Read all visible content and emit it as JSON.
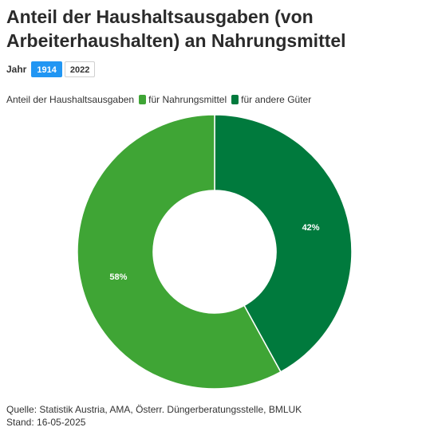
{
  "title": "Anteil der Haushaltsausgaben (von Arbeiterhaushalten) an Nahrungsmittel",
  "controls": {
    "label": "Jahr",
    "years": [
      {
        "label": "1914",
        "active": true
      },
      {
        "label": "2022",
        "active": false
      }
    ]
  },
  "legend": {
    "title": "Anteil der Haushaltsausgaben"
  },
  "chart_data": {
    "type": "pie",
    "donut": true,
    "year": "1914",
    "series": [
      {
        "name": "für Nahrungsmittel",
        "value": 58,
        "label": "58%",
        "color": "#3fa535"
      },
      {
        "name": "für andere Güter",
        "value": 42,
        "label": "42%",
        "color": "#007a3d"
      }
    ]
  },
  "footer": {
    "source": "Quelle: Statistik Austria, AMA, Österr. Düngerberatungsstelle, BMLUK",
    "date": "Stand: 16-05-2025"
  }
}
